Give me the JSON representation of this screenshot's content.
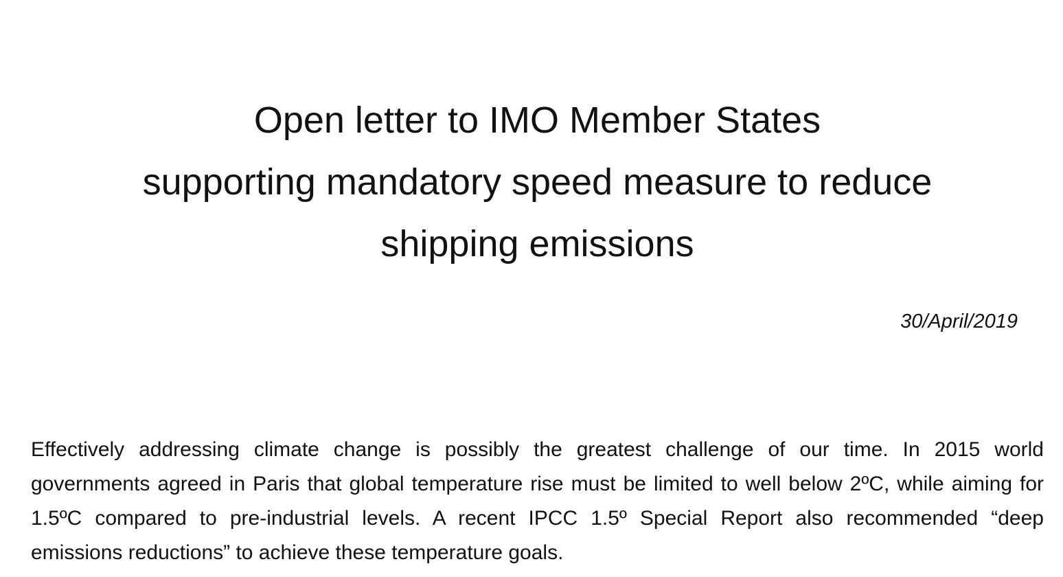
{
  "document": {
    "title_lines": [
      "Open letter to IMO Member States",
      "supporting mandatory speed measure to reduce",
      "shipping emissions"
    ],
    "date": "30/April/2019",
    "paragraph": "Effectively addressing climate change is possibly the greatest challenge of our time. In 2015 world governments agreed in Paris that global temperature rise must be limited to well below 2ºC, while aiming for 1.5ºC compared to pre-industrial levels. A recent IPCC 1.5º Special Report also recommended “deep emissions reductions” to achieve these temperature goals."
  }
}
